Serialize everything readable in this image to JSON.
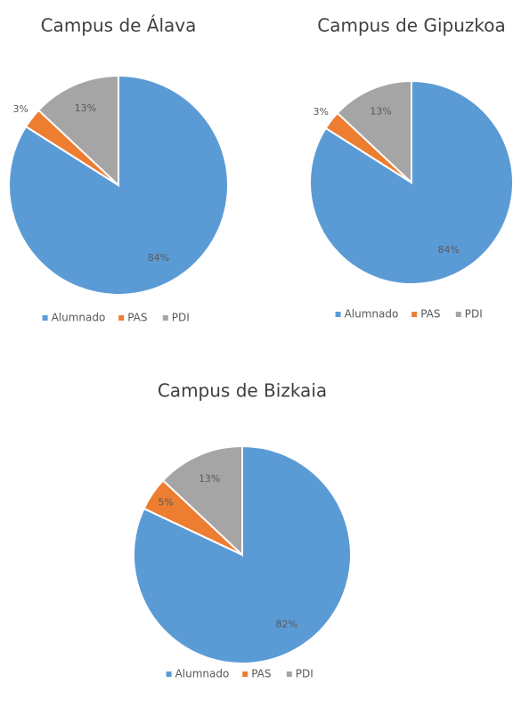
{
  "chart_data": [
    {
      "type": "pie",
      "title": "Campus de Álava",
      "categories": [
        "Alumnado",
        "PAS",
        "PDI"
      ],
      "values": [
        84,
        3,
        13
      ],
      "value_labels": [
        "84%",
        "3%",
        "13%"
      ],
      "colors": [
        "#5b9bd5",
        "#ed7d31",
        "#a5a5a5"
      ],
      "legend": "bottom"
    },
    {
      "type": "pie",
      "title": "Campus de Gipuzkoa",
      "categories": [
        "Alumnado",
        "PAS",
        "PDI"
      ],
      "values": [
        84,
        3,
        13
      ],
      "value_labels": [
        "84%",
        "3%",
        "13%"
      ],
      "colors": [
        "#5b9bd5",
        "#ed7d31",
        "#a5a5a5"
      ],
      "legend": "bottom"
    },
    {
      "type": "pie",
      "title": "Campus de Bizkaia",
      "categories": [
        "Alumnado",
        "PAS",
        "PDI"
      ],
      "values": [
        82,
        5,
        13
      ],
      "value_labels": [
        "82%",
        "5%",
        "13%"
      ],
      "colors": [
        "#5b9bd5",
        "#ed7d31",
        "#a5a5a5"
      ],
      "legend": "bottom"
    }
  ]
}
